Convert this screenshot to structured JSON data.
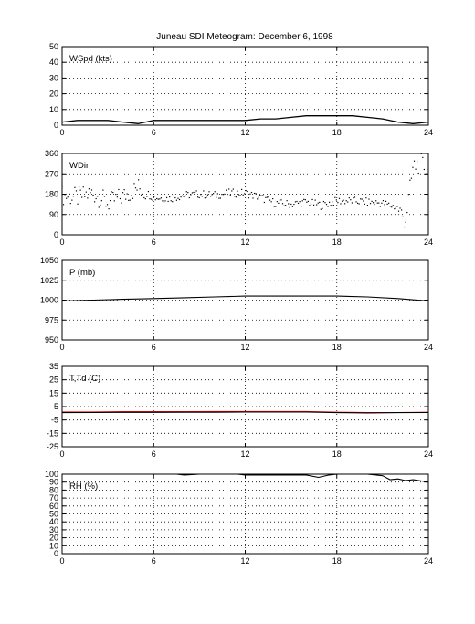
{
  "title": "Juneau SDI Meteogram:   December  6, 1998",
  "chart_data": [
    {
      "type": "line",
      "label": "WSpd (kts)",
      "xlim": [
        0,
        24
      ],
      "ylim": [
        0,
        50
      ],
      "xticks": [
        0,
        6,
        12,
        18,
        24
      ],
      "yticks": [
        0,
        10,
        20,
        30,
        40,
        50
      ],
      "x": [
        0,
        1,
        2,
        3,
        4,
        5,
        6,
        7,
        8,
        9,
        10,
        11,
        12,
        13,
        14,
        15,
        16,
        17,
        18,
        19,
        20,
        21,
        22,
        23,
        24
      ],
      "series": [
        {
          "color": "#000000",
          "values": [
            2,
            3,
            3,
            3,
            2,
            1,
            3,
            3,
            3,
            3,
            3,
            3,
            3,
            4,
            4,
            5,
            6,
            6,
            6,
            6,
            5,
            4,
            2,
            1,
            2
          ]
        }
      ]
    },
    {
      "type": "scatter",
      "label": "WDir",
      "xlim": [
        0,
        24
      ],
      "ylim": [
        0,
        360
      ],
      "xticks": [
        0,
        6,
        12,
        18,
        24
      ],
      "yticks": [
        0,
        90,
        180,
        270,
        360
      ],
      "x": [
        0,
        1,
        2,
        3,
        4,
        5,
        6,
        7,
        8,
        9,
        10,
        11,
        12,
        13,
        14,
        15,
        16,
        17,
        18,
        19,
        20,
        21,
        22,
        22.5,
        23,
        23.5,
        24
      ],
      "series": [
        {
          "color": "#000000",
          "values": [
            175,
            165,
            185,
            140,
            170,
            210,
            165,
            160,
            175,
            180,
            175,
            185,
            185,
            165,
            140,
            135,
            145,
            130,
            150,
            150,
            145,
            140,
            120,
            60,
            300,
            320,
            280
          ]
        }
      ]
    },
    {
      "type": "line",
      "label": "P (mb)",
      "xlim": [
        0,
        24
      ],
      "ylim": [
        950,
        1050
      ],
      "xticks": [
        0,
        6,
        12,
        18,
        24
      ],
      "yticks": [
        950,
        975,
        1000,
        1025,
        1050
      ],
      "x": [
        0,
        2,
        4,
        6,
        8,
        10,
        12,
        14,
        16,
        18,
        20,
        22,
        24
      ],
      "series": [
        {
          "color": "#000000",
          "values": [
            999,
            1000,
            1001,
            1002,
            1003,
            1004,
            1005,
            1005,
            1005,
            1005,
            1004,
            1002,
            999
          ]
        }
      ]
    },
    {
      "type": "line",
      "label": "T,Td (C)",
      "xlim": [
        0,
        24
      ],
      "ylim": [
        -25,
        35
      ],
      "xticks": [
        0,
        6,
        12,
        18,
        24
      ],
      "yticks": [
        -25,
        -15,
        -5,
        5,
        15,
        25,
        35
      ],
      "x": [
        0,
        2,
        4,
        6,
        8,
        10,
        12,
        14,
        16,
        18,
        20,
        22,
        24
      ],
      "series": [
        {
          "name": "T",
          "color": "#ff0000",
          "values": [
            1,
            1,
            1.2,
            1.2,
            1.2,
            1.3,
            1.3,
            1.3,
            1.3,
            0.8,
            0.5,
            0.6,
            0.8
          ]
        },
        {
          "name": "Td",
          "color": "#000000",
          "values": [
            0.5,
            0.6,
            0.7,
            0.7,
            0.8,
            0.8,
            0.9,
            0.9,
            0.9,
            0.5,
            0.3,
            0.5,
            0.6
          ]
        }
      ]
    },
    {
      "type": "line",
      "label": "RH (%)",
      "xlim": [
        0,
        24
      ],
      "ylim": [
        0,
        100
      ],
      "xticks": [
        0,
        6,
        12,
        18,
        24
      ],
      "yticks": [
        0,
        10,
        20,
        30,
        40,
        50,
        60,
        70,
        80,
        90,
        100
      ],
      "x": [
        0,
        2,
        4,
        6,
        7.5,
        8,
        9,
        11.5,
        12,
        14,
        16,
        16.8,
        17.5,
        18,
        20,
        21,
        21.5,
        22,
        22.5,
        23,
        24
      ],
      "series": [
        {
          "color": "#000000",
          "values": [
            100,
            100,
            100,
            100,
            100,
            99,
            100,
            100,
            99,
            99,
            99,
            96,
            99,
            100,
            100,
            98,
            93,
            94,
            92,
            93,
            90
          ]
        }
      ]
    }
  ]
}
